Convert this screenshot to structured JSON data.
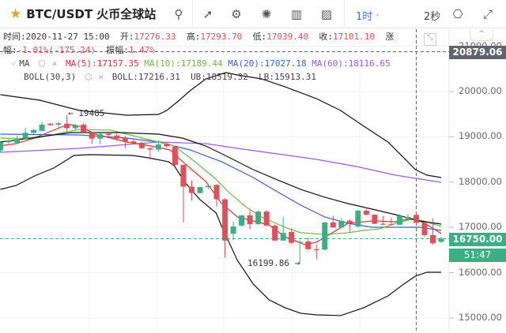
{
  "header": {
    "title": "BTC/USDT 火币全球站",
    "period": "1时",
    "period_caret": "˅",
    "speed": "2秒",
    "icons": [
      "star-icon",
      "search-icon",
      "indicator-icon",
      "settings-icon",
      "theme-icon",
      "depth-icon",
      "chart-type-icon",
      "camera-icon",
      "fullscreen-icon"
    ]
  },
  "info": {
    "time_label": "时间:",
    "time": "2020-11-27 15:00",
    "open_label": "开:",
    "open": "17276.33",
    "high_label": "高:",
    "high": "17293.70",
    "low_label": "低:",
    "low": "17039.40",
    "close_label": "收:",
    "close": "17101.10",
    "change_label": "涨幅:",
    "change": "-1.01%(-175.24)",
    "amp_label": "振幅:",
    "amp": "1.47%"
  },
  "indicators": {
    "ma_name": "MA",
    "ma5": "MA(5):17157.35",
    "ma10": "MA(10):17189.44",
    "ma20": "MA(20):17027.18",
    "ma60": "MA(60):18116.65",
    "boll_name": "BOLL(30,3)",
    "boll": "BOLL:17216.31",
    "ub": "UB:18519.32",
    "lb": "LB:15913.31"
  },
  "colors": {
    "up": "#3aae85",
    "down": "#e0505a",
    "ma5": "#e03030",
    "ma10": "#66c040",
    "ma20": "#3a5fd0",
    "ma60": "#9a5ae0",
    "boll": "#111111"
  },
  "axis": {
    "ticks": [
      "21000.00",
      "20000.00",
      "19000.00",
      "18000.00",
      "17000.00",
      "16000.00",
      "15000.00"
    ],
    "crosshair_price": "20879.06",
    "last_price": "16750.00",
    "countdown": "51:47"
  },
  "annotations": {
    "high": "19485",
    "low": "16199.86"
  },
  "chart_data": {
    "type": "candlestick",
    "ylim": [
      14800,
      21500
    ],
    "candles": [
      [
        18700,
        18880,
        18900,
        18650
      ],
      [
        18880,
        18920,
        18950,
        18850
      ],
      [
        18870,
        18950,
        19030,
        18850
      ],
      [
        18960,
        19090,
        19200,
        18950
      ],
      [
        19090,
        19150,
        19170,
        19060
      ],
      [
        19130,
        19270,
        19340,
        19120
      ],
      [
        19290,
        19260,
        19310,
        19250
      ],
      [
        19270,
        19300,
        19330,
        19200
      ],
      [
        19290,
        19190,
        19485,
        19120
      ],
      [
        19190,
        19250,
        19290,
        19150
      ],
      [
        19270,
        19110,
        19310,
        19090
      ],
      [
        19100,
        18960,
        19120,
        18850
      ],
      [
        18960,
        19060,
        19080,
        18830
      ],
      [
        19070,
        19040,
        19090,
        19010
      ],
      [
        19030,
        18960,
        19070,
        18920
      ],
      [
        18970,
        18890,
        19020,
        18750
      ],
      [
        18900,
        18860,
        18950,
        18830
      ],
      [
        18870,
        18750,
        18900,
        18730
      ],
      [
        18750,
        18720,
        18760,
        18500
      ],
      [
        18720,
        18830,
        18920,
        18660
      ],
      [
        18850,
        18790,
        18880,
        18760
      ],
      [
        18780,
        18380,
        18800,
        18360
      ],
      [
        18380,
        17900,
        18390,
        17110
      ],
      [
        17900,
        17760,
        18040,
        17590
      ],
      [
        17760,
        17890,
        17900,
        17740
      ],
      [
        17890,
        17920,
        17940,
        17850
      ],
      [
        17940,
        17620,
        17950,
        17460
      ],
      [
        17620,
        16710,
        17640,
        16330
      ],
      [
        16860,
        17020,
        17130,
        16720
      ],
      [
        17040,
        17265,
        17280,
        17020
      ],
      [
        17265,
        17070,
        17410,
        16960
      ],
      [
        17075,
        17350,
        17370,
        17050
      ],
      [
        17350,
        17040,
        17380,
        17030
      ],
      [
        17040,
        16710,
        17060,
        16700
      ],
      [
        16710,
        16880,
        17230,
        16700
      ],
      [
        16900,
        16660,
        16980,
        16630
      ],
      [
        16660,
        16680,
        16720,
        16199.86
      ],
      [
        16690,
        16520,
        16780,
        16500
      ],
      [
        16520,
        16500,
        16630,
        16290
      ],
      [
        16510,
        17110,
        17120,
        16490
      ],
      [
        17110,
        17000,
        17260,
        16990
      ],
      [
        17000,
        17145,
        17200,
        16980
      ],
      [
        17150,
        17110,
        17180,
        16900
      ],
      [
        17020,
        17370,
        17380,
        16990
      ],
      [
        17370,
        17280,
        17440,
        17270
      ],
      [
        17280,
        17080,
        17290,
        17070
      ],
      [
        17080,
        17060,
        17250,
        17050
      ],
      [
        17070,
        17060,
        17210,
        17040
      ],
      [
        17060,
        17250,
        17290,
        17050
      ],
      [
        17190,
        17230,
        17300,
        17170
      ],
      [
        17276.33,
        17101.1,
        17293.7,
        17039.4
      ],
      [
        17100,
        16830,
        17120,
        16790
      ],
      [
        16830,
        16650,
        17200,
        16620
      ],
      [
        16680,
        16750,
        16800,
        16660
      ]
    ],
    "candle_format": [
      "open",
      "close",
      "high",
      "low"
    ],
    "lines": {
      "ma5": [
        [
          0,
          18800
        ],
        [
          1.9,
          18850
        ],
        [
          3.8,
          18955
        ],
        [
          5.7,
          19094
        ],
        [
          7.6,
          19234
        ],
        [
          8.55,
          19268
        ],
        [
          9.5,
          19234
        ],
        [
          11.4,
          19059
        ],
        [
          13.3,
          18972
        ],
        [
          15.2,
          18885
        ],
        [
          18.1,
          18798
        ],
        [
          20.4,
          18711
        ],
        [
          21.9,
          18450
        ],
        [
          24.7,
          18014
        ],
        [
          26.6,
          17526
        ],
        [
          28.5,
          17230
        ],
        [
          30.4,
          17143
        ],
        [
          32.3,
          17056
        ],
        [
          34.2,
          16795
        ],
        [
          36.6,
          16621
        ],
        [
          38,
          16673
        ],
        [
          39.9,
          16882
        ],
        [
          41.8,
          17091
        ],
        [
          44.7,
          17143
        ],
        [
          47.5,
          17126
        ],
        [
          49.4,
          17195
        ],
        [
          50.9,
          17108
        ],
        [
          53,
          16864
        ]
      ],
      "ma10": [
        [
          0,
          18972
        ],
        [
          3.8,
          18955
        ],
        [
          7.6,
          19094
        ],
        [
          9.5,
          19164
        ],
        [
          13.3,
          19146
        ],
        [
          15.2,
          19059
        ],
        [
          19,
          18885
        ],
        [
          20.9,
          18798
        ],
        [
          22.8,
          18537
        ],
        [
          25.7,
          18101
        ],
        [
          27.6,
          17753
        ],
        [
          29.5,
          17457
        ],
        [
          31.4,
          17230
        ],
        [
          34.2,
          17004
        ],
        [
          36.1,
          16882
        ],
        [
          39,
          16847
        ],
        [
          41.8,
          16882
        ],
        [
          43.7,
          16934
        ],
        [
          45.6,
          16969
        ],
        [
          47.5,
          17091
        ],
        [
          49.4,
          17178
        ],
        [
          50.9,
          17143
        ],
        [
          53,
          17021
        ]
      ],
      "ma20": [
        [
          0,
          19059
        ],
        [
          9.5,
          19042
        ],
        [
          15.2,
          18972
        ],
        [
          19,
          18885
        ],
        [
          22.8,
          18711
        ],
        [
          26.6,
          18450
        ],
        [
          30.4,
          18101
        ],
        [
          33.3,
          17788
        ],
        [
          36.1,
          17492
        ],
        [
          39,
          17230
        ],
        [
          41.8,
          17091
        ],
        [
          44.7,
          17004
        ],
        [
          47.5,
          17004
        ],
        [
          50.4,
          17004
        ],
        [
          53,
          16934
        ]
      ],
      "ma60": [
        [
          0,
          18659
        ],
        [
          9.5,
          18746
        ],
        [
          19,
          18885
        ],
        [
          24.7,
          18850
        ],
        [
          28.5,
          18746
        ],
        [
          33.3,
          18624
        ],
        [
          38,
          18502
        ],
        [
          42.8,
          18345
        ],
        [
          47.5,
          18153
        ],
        [
          53,
          17997
        ]
      ],
      "boll_mid": [
        [
          0,
          18885
        ],
        [
          8.55,
          19094
        ],
        [
          14.3,
          19094
        ],
        [
          19,
          19059
        ],
        [
          21.9,
          18972
        ],
        [
          24.7,
          18798
        ],
        [
          27.6,
          18537
        ],
        [
          30.4,
          18275
        ],
        [
          33.3,
          18049
        ],
        [
          36.1,
          17840
        ],
        [
          39,
          17666
        ],
        [
          41.8,
          17526
        ],
        [
          44.7,
          17404
        ],
        [
          47.5,
          17282
        ],
        [
          50.4,
          17143
        ],
        [
          53,
          17073
        ]
      ],
      "boll_upper": [
        [
          0,
          19930
        ],
        [
          4.75,
          19808
        ],
        [
          9.5,
          19582
        ],
        [
          15.2,
          19477
        ],
        [
          19,
          19495
        ],
        [
          20,
          19582
        ],
        [
          21.4,
          19791
        ],
        [
          22.8,
          20017
        ],
        [
          24.7,
          20279
        ],
        [
          27.1,
          20418
        ],
        [
          28.5,
          20366
        ],
        [
          31.4,
          20279
        ],
        [
          34.2,
          20105
        ],
        [
          38,
          19843
        ],
        [
          40.9,
          19582
        ],
        [
          43.7,
          19234
        ],
        [
          46.6,
          18885
        ],
        [
          48.5,
          18537
        ],
        [
          49.9,
          18275
        ],
        [
          51.3,
          18153
        ],
        [
          53,
          18101
        ]
      ],
      "boll_lower": [
        [
          0,
          17840
        ],
        [
          1.9,
          17927
        ],
        [
          4.1,
          18136
        ],
        [
          6.4,
          18310
        ],
        [
          8.85,
          18589
        ],
        [
          10.7,
          18606
        ],
        [
          15.9,
          18589
        ],
        [
          17.8,
          18537
        ],
        [
          20.2,
          18450
        ],
        [
          20.9,
          18363
        ],
        [
          22.1,
          18014
        ],
        [
          24,
          17613
        ],
        [
          25.95,
          17317
        ],
        [
          26.6,
          17021
        ],
        [
          28.5,
          16272
        ],
        [
          30.4,
          15750
        ],
        [
          32.3,
          15401
        ],
        [
          34.2,
          15227
        ],
        [
          36.1,
          15105
        ],
        [
          38,
          15070
        ],
        [
          40.9,
          15053
        ],
        [
          43.7,
          15227
        ],
        [
          46.6,
          15488
        ],
        [
          48.5,
          15750
        ],
        [
          49.9,
          15924
        ],
        [
          51.3,
          16011
        ],
        [
          53,
          16011
        ]
      ]
    }
  }
}
